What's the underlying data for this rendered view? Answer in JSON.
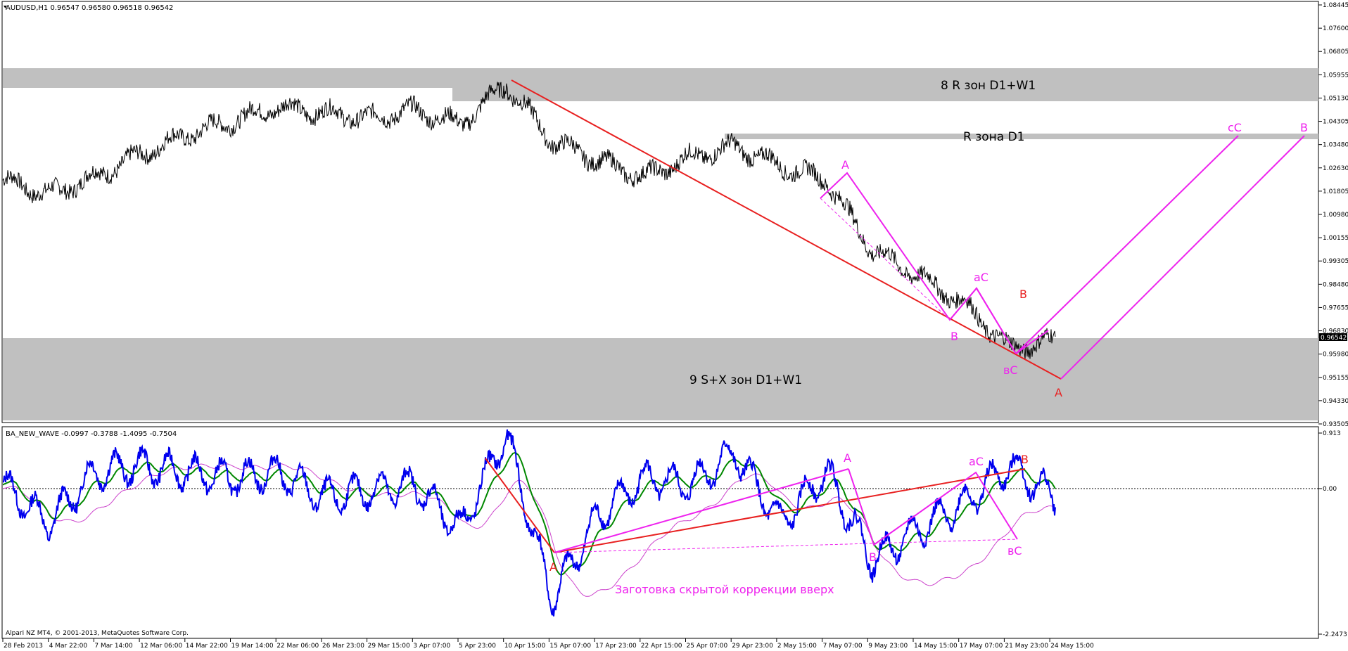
{
  "main": {
    "title": "AUDUSD,H1  0.96547 0.96580 0.96518 0.96542",
    "price_label": "0.96542",
    "yticks": [
      "1.08445",
      "1.07600",
      "1.06805",
      "1.05955",
      "1.05130",
      "1.04305",
      "1.03480",
      "1.02630",
      "1.01805",
      "1.00980",
      "1.00155",
      "0.99305",
      "0.98480",
      "0.97655",
      "0.96830",
      "0.95980",
      "0.95155",
      "0.94330",
      "0.93505"
    ],
    "zones": {
      "r_zone_w1": "8 R зон D1+W1",
      "r_zone_d1": "R зона D1",
      "s_zone": "9 S+X зон D1+W1"
    },
    "wave_labels": {
      "A_top": "A",
      "B_low": "B",
      "aC": "аС",
      "B_red": "B",
      "vC": "вС",
      "A_red": "A",
      "cC": "сС",
      "B_target": "B"
    },
    "colors": {
      "price": "#000000",
      "trend": "#e82020",
      "wave": "#ee22ee",
      "zone": "#c0c0c0"
    }
  },
  "sub": {
    "title": "BA_NEW_WAVE -0.0997 -0.3788 -1.4095 -0.7504",
    "yticks": [
      "0.913",
      "0.00",
      "-2.2473"
    ],
    "wave_labels": {
      "A_start": "A",
      "A_top": "A",
      "B": "B",
      "aC": "аС",
      "B_red": "B",
      "vC": "вС"
    },
    "annotation": "Заготовка скрытой коррекции вверх",
    "colors": {
      "fast": "#0000ee",
      "signal": "#008800",
      "slow": "#cc44cc"
    }
  },
  "footer": {
    "copyright": "Alpari NZ MT4, © 2001-2013, MetaQuotes Software Corp."
  },
  "xticks": [
    "28 Feb 2013",
    "4 Mar 22:00",
    "7 Mar 14:00",
    "12 Mar 06:00",
    "14 Mar 22:00",
    "19 Mar 14:00",
    "22 Mar 06:00",
    "26 Mar 23:00",
    "29 Mar 15:00",
    "3 Apr 07:00",
    "5 Apr 23:00",
    "10 Apr 15:00",
    "15 Apr 07:00",
    "17 Apr 23:00",
    "22 Apr 15:00",
    "25 Apr 07:00",
    "29 Apr 23:00",
    "2 May 15:00",
    "7 May 07:00",
    "9 May 23:00",
    "14 May 15:00",
    "17 May 07:00",
    "21 May 23:00",
    "24 May 15:00"
  ],
  "chart_data": [
    {
      "type": "line",
      "title": "AUDUSD,H1  0.96547 0.96580 0.96518 0.96542",
      "ylim": [
        0.93505,
        1.08445
      ],
      "series": [
        {
          "name": "AUDUSD",
          "x": [
            "28 Feb 2013",
            "4 Mar 22:00",
            "7 Mar 14:00",
            "12 Mar 06:00",
            "14 Mar 22:00",
            "19 Mar 14:00",
            "22 Mar 06:00",
            "26 Mar 23:00",
            "29 Mar 15:00",
            "3 Apr 07:00",
            "5 Apr 23:00",
            "10 Apr 15:00",
            "15 Apr 07:00",
            "17 Apr 23:00",
            "22 Apr 15:00",
            "25 Apr 07:00",
            "29 Apr 23:00",
            "2 May 15:00",
            "7 May 07:00",
            "9 May 23:00",
            "14 May 15:00",
            "17 May 07:00",
            "21 May 23:00",
            "24 May 15:00"
          ],
          "values": [
            1.022,
            1.017,
            1.023,
            1.031,
            1.038,
            1.043,
            1.048,
            1.046,
            1.044,
            1.047,
            1.042,
            1.056,
            1.036,
            1.029,
            1.023,
            1.03,
            1.034,
            1.027,
            1.022,
            0.997,
            0.988,
            0.978,
            0.962,
            0.965
          ]
        }
      ]
    },
    {
      "type": "line",
      "title": "BA_NEW_WAVE -0.0997 -0.3788 -1.4095 -0.7504",
      "ylim": [
        -2.2473,
        0.913
      ],
      "series": [
        {
          "x": [
            "28 Feb 2013",
            "4 Mar 22:00",
            "7 Mar 14:00",
            "12 Mar 06:00",
            "14 Mar 22:00",
            "19 Mar 14:00",
            "22 Mar 06:00",
            "26 Mar 23:00",
            "29 Mar 15:00",
            "3 Apr 07:00",
            "5 Apr 23:00",
            "10 Apr 15:00",
            "15 Apr 07:00",
            "17 Apr 23:00",
            "22 Apr 15:00",
            "25 Apr 07:00",
            "29 Apr 23:00",
            "2 May 15:00",
            "7 May 07:00",
            "9 May 23:00",
            "14 May 15:00",
            "17 May 07:00",
            "21 May 23:00",
            "24 May 15:00"
          ],
          "values": [
            0.1,
            -0.5,
            0.3,
            0.4,
            0.3,
            0.2,
            0.3,
            -0.1,
            0.0,
            0.1,
            -0.6,
            0.9,
            -1.7,
            -0.4,
            0.2,
            0.1,
            0.6,
            -0.5,
            0.3,
            -1.1,
            -0.6,
            -0.2,
            0.4,
            -0.1
          ]
        }
      ]
    }
  ]
}
